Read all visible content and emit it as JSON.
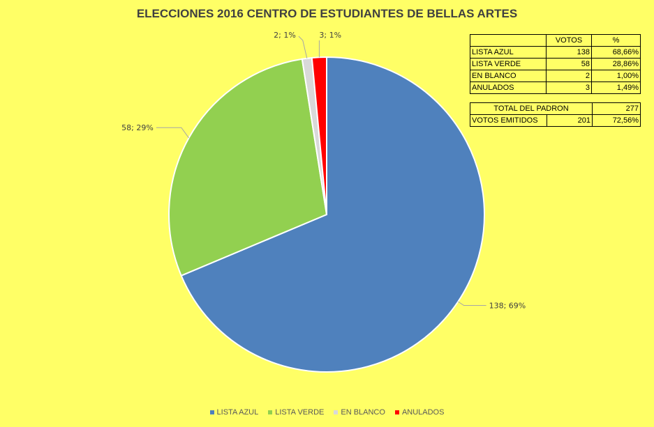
{
  "chart_data": {
    "type": "pie",
    "title": "ELECCIONES 2016 CENTRO DE ESTUDIANTES DE BELLAS ARTES",
    "categories": [
      "LISTA AZUL",
      "LISTA VERDE",
      "EN BLANCO",
      "ANULADOS"
    ],
    "values": [
      138,
      58,
      2,
      3
    ],
    "data_labels": [
      "138; 69%",
      "58; 29%",
      "2; 1%",
      "3; 1%"
    ],
    "colors": [
      "#4F81BD",
      "#92D050",
      "#D9D9D9",
      "#FF0000"
    ],
    "legend_position": "bottom"
  },
  "table_votes": {
    "header": [
      "",
      "VOTOS",
      "%"
    ],
    "rows": [
      [
        "LISTA AZUL",
        "138",
        "68,66%"
      ],
      [
        "LISTA VERDE",
        "58",
        "28,86%"
      ],
      [
        "EN BLANCO",
        "2",
        "1,00%"
      ],
      [
        "ANULADOS",
        "3",
        "1,49%"
      ]
    ]
  },
  "table_totals": {
    "padron_label": "TOTAL DEL PADRON",
    "padron_value": "277",
    "emitidos_label": "VOTOS EMITIDOS",
    "emitidos_value": "201",
    "emitidos_pct": "72,56%"
  }
}
